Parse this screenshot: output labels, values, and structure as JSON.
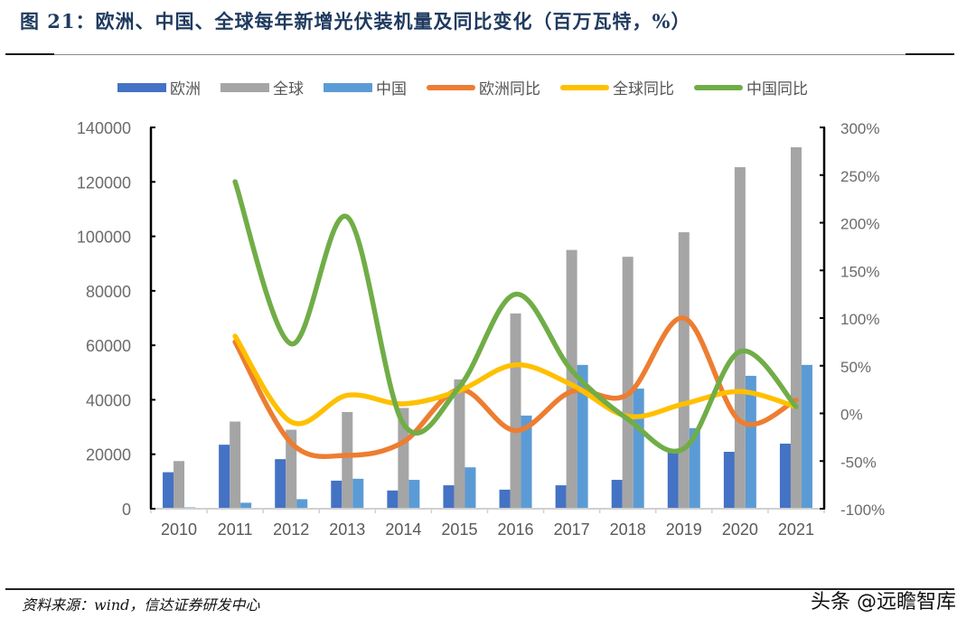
{
  "header": {
    "title": "图 21：欧洲、中国、全球每年新增光伏装机量及同比变化（百万瓦特，%）"
  },
  "footer": {
    "source": "资料来源：wind，信达证券研发中心",
    "watermark": "头条 @远瞻智库"
  },
  "legend": [
    {
      "label": "欧洲",
      "type": "bar",
      "color": "#4472c4"
    },
    {
      "label": "全球",
      "type": "bar",
      "color": "#a5a5a5"
    },
    {
      "label": "中国",
      "type": "bar",
      "color": "#5b9bd5"
    },
    {
      "label": "欧洲同比",
      "type": "line",
      "color": "#ed7d31"
    },
    {
      "label": "全球同比",
      "type": "line",
      "color": "#ffc000"
    },
    {
      "label": "中国同比",
      "type": "line",
      "color": "#70ad47"
    }
  ],
  "chart_data": {
    "type": "bar+line",
    "title": "欧洲、中国、全球每年新增光伏装机量及同比变化（百万瓦特，%）",
    "xlabel": "",
    "ylabel": "百万瓦特",
    "y2label": "%",
    "categories": [
      "2010",
      "2011",
      "2012",
      "2013",
      "2014",
      "2015",
      "2016",
      "2017",
      "2018",
      "2019",
      "2020",
      "2021"
    ],
    "ylim": [
      0,
      140000
    ],
    "yticks": [
      "0",
      "20000",
      "40000",
      "60000",
      "80000",
      "100000",
      "120000",
      "140000"
    ],
    "y2lim": [
      -100,
      300
    ],
    "y2ticks": [
      "-100%",
      "-50%",
      "0%",
      "50%",
      "100%",
      "150%",
      "200%",
      "250%",
      "300%"
    ],
    "grid": false,
    "legend_position": "top",
    "series": [
      {
        "name": "欧洲",
        "type": "bar",
        "axis": "left",
        "color": "#4472c4",
        "values": [
          13400,
          23500,
          18200,
          10300,
          6700,
          8600,
          7000,
          8600,
          10600,
          20900,
          20900,
          23900
        ]
      },
      {
        "name": "全球",
        "type": "bar",
        "axis": "left",
        "color": "#a5a5a5",
        "values": [
          17500,
          32000,
          29000,
          35500,
          37000,
          47500,
          71700,
          95000,
          92500,
          101500,
          125400,
          132700
        ]
      },
      {
        "name": "中国",
        "type": "bar",
        "axis": "left",
        "color": "#5b9bd5",
        "values": [
          500,
          2200,
          3500,
          11000,
          10600,
          15200,
          34200,
          52800,
          44100,
          29600,
          48800,
          52800
        ]
      },
      {
        "name": "欧洲同比",
        "type": "line",
        "axis": "right",
        "color": "#ed7d31",
        "values": [
          null,
          75,
          -31,
          -44,
          -30,
          25,
          -18,
          23,
          20,
          100,
          -8,
          14
        ]
      },
      {
        "name": "全球同比",
        "type": "line",
        "axis": "right",
        "color": "#ffc000",
        "values": [
          null,
          81,
          -9,
          19,
          10,
          24,
          51,
          30,
          -3,
          10,
          23,
          7
        ]
      },
      {
        "name": "中国同比",
        "type": "line",
        "axis": "right",
        "color": "#70ad47",
        "values": [
          null,
          243,
          73,
          206,
          -11,
          28,
          125,
          45,
          -6,
          -37,
          65,
          7
        ]
      }
    ]
  }
}
